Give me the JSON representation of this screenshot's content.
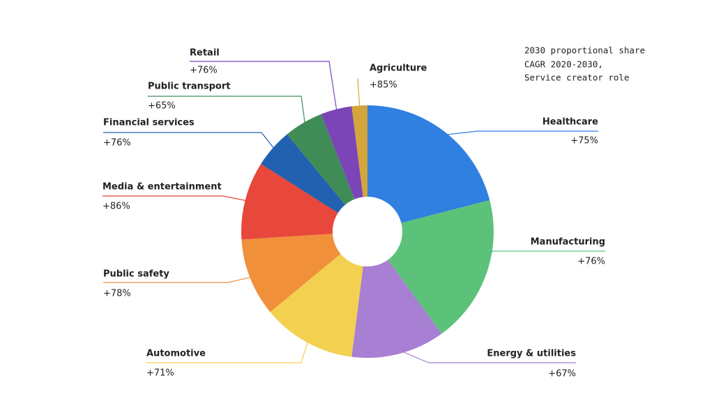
{
  "chart_data": {
    "type": "donut",
    "note": [
      "2030 proportional share",
      "CAGR 2020-2030,",
      "Service creator role"
    ],
    "categories": [
      "Healthcare",
      "Manufacturing",
      "Energy & utilities",
      "Automotive",
      "Public safety",
      "Media & entertainment",
      "Financial services",
      "Public transport",
      "Retail",
      "Agriculture"
    ],
    "values": [
      21,
      19,
      12,
      12,
      10,
      10,
      5,
      5,
      4,
      2
    ],
    "colors": [
      "#2f80e0",
      "#5cc27a",
      "#a77fd3",
      "#f3d04f",
      "#f0903a",
      "#e8473b",
      "#2260b0",
      "#3f8c57",
      "#7b45b8",
      "#d4a53a"
    ],
    "cagr": {
      "values": [
        75,
        76,
        67,
        71,
        78,
        86,
        76,
        65,
        76,
        85
      ],
      "value_labels": [
        "+75%",
        "+76%",
        "+67%",
        "+71%",
        "+78%",
        "+86%",
        "+76%",
        "+65%",
        "+76%",
        "+85%"
      ]
    }
  }
}
